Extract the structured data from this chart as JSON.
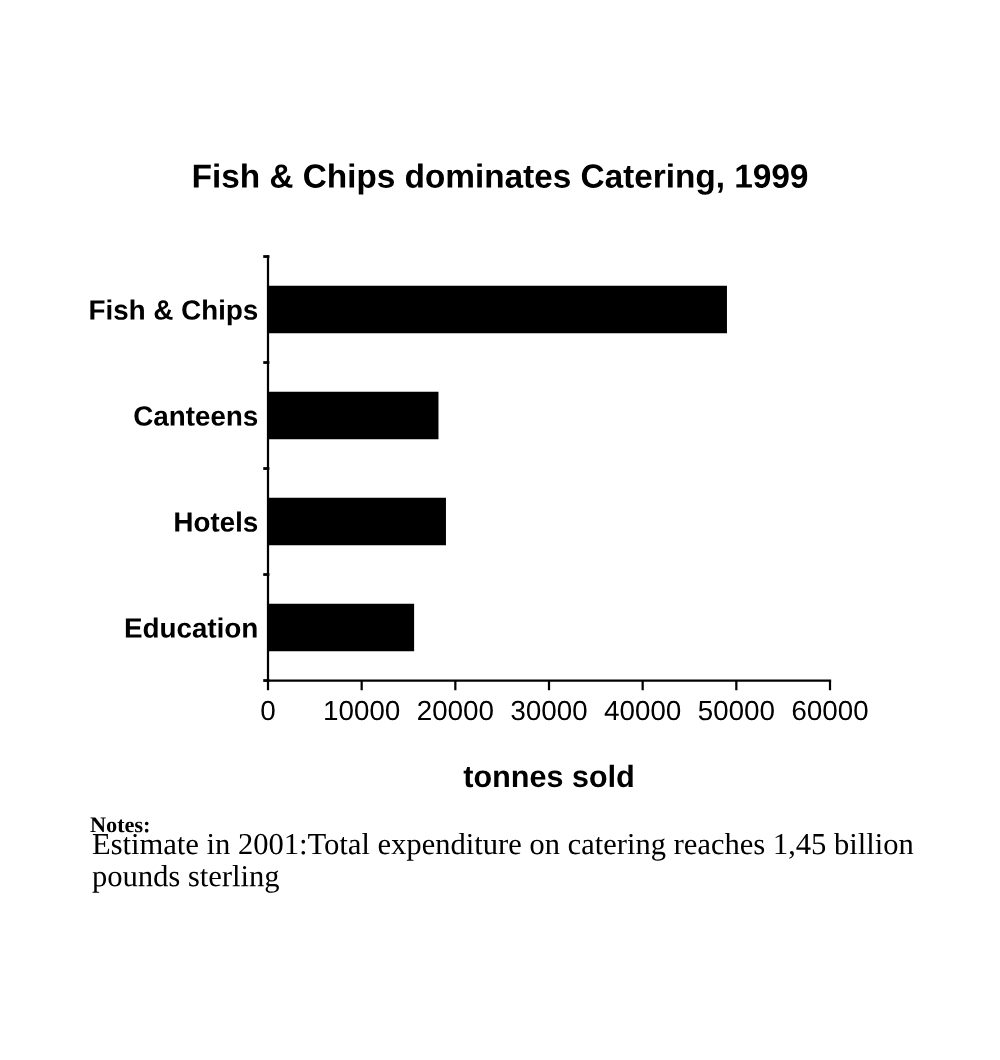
{
  "chart_data": {
    "type": "bar",
    "orientation": "horizontal",
    "title": "Fish & Chips dominates Catering, 1999",
    "categories": [
      "Fish & Chips",
      "Canteens",
      "Hotels",
      "Education"
    ],
    "values": [
      49000,
      18200,
      19000,
      15600
    ],
    "color": "#000000",
    "xlabel": "tonnes sold",
    "xlim": [
      0,
      60000
    ],
    "xticks": [
      0,
      10000,
      20000,
      30000,
      40000,
      50000,
      60000
    ],
    "grid": false,
    "legend": false,
    "annotations": [
      "Notes:",
      "Estimate in 2001:Total expenditure on catering reaches 1,45 billion  pounds sterling"
    ]
  }
}
